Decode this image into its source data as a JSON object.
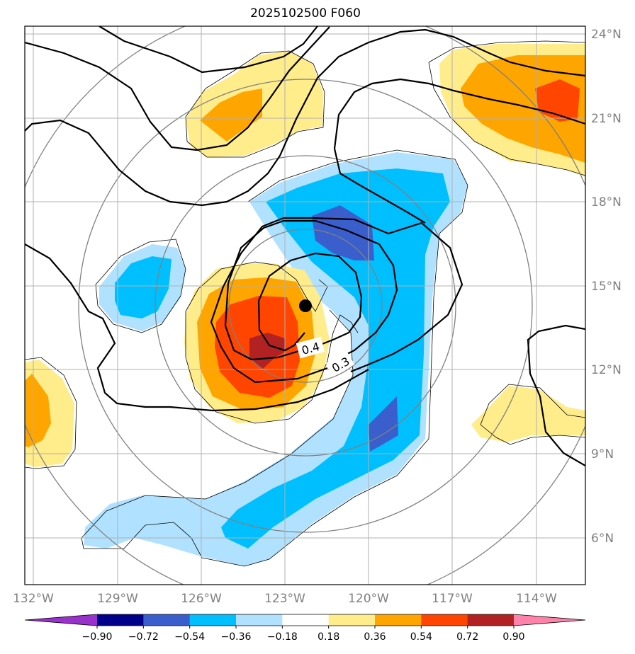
{
  "title": "2025102500 F060",
  "lon_ticks": [
    "132°W",
    "129°W",
    "126°W",
    "123°W",
    "120°W",
    "117°W",
    "114°W"
  ],
  "lat_ticks": [
    "24°N",
    "21°N",
    "18°N",
    "15°N",
    "12°N",
    "9°N",
    "6°N"
  ],
  "contour_labels": [
    "0.4",
    "0.3"
  ],
  "colorbar": {
    "tick_labels": [
      "−0.90",
      "−0.72",
      "−0.54",
      "−0.36",
      "−0.18",
      "0.18",
      "0.36",
      "0.54",
      "0.72",
      "0.90"
    ],
    "colors": [
      "#9932cc",
      "#00008b",
      "#3a5fcd",
      "#00bfff",
      "#b0e2ff",
      "#ffffff",
      "#ffec8b",
      "#ffa500",
      "#ff4500",
      "#b22222",
      "#ff82ab"
    ]
  },
  "storm_center": {
    "lon": "122.3°W",
    "lat": "14.3°N"
  }
}
